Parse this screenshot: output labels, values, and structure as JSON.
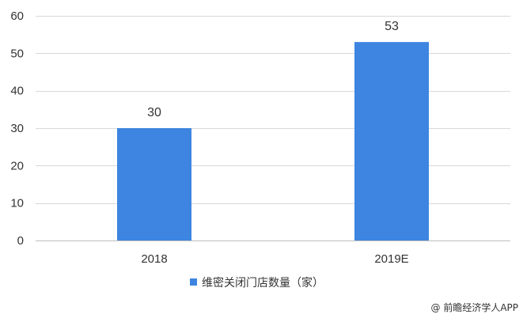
{
  "chart_data": {
    "type": "bar",
    "categories": [
      "2018",
      "2019E"
    ],
    "series": [
      {
        "name": "维密关闭门店数量（家）",
        "values": [
          30,
          53
        ]
      }
    ],
    "data_labels": [
      "30",
      "53"
    ],
    "y_ticks": [
      "0",
      "10",
      "20",
      "30",
      "40",
      "50",
      "60"
    ],
    "ylim": [
      0,
      60
    ],
    "grid": true,
    "legend_position": "bottom",
    "bar_color": "#3d85e0",
    "source": "@ 前瞻经济学人APP"
  }
}
